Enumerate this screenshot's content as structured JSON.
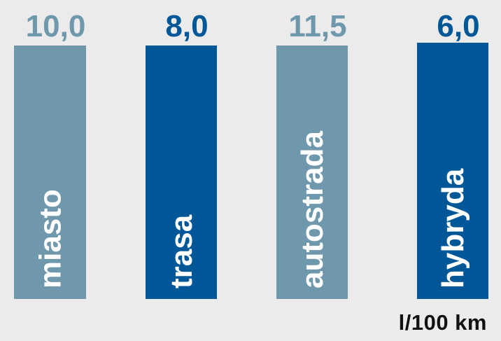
{
  "chart_data": {
    "type": "bar",
    "categories": [
      "miasto",
      "trasa",
      "autostrada",
      "hybryda"
    ],
    "value_labels": [
      "10,0",
      "8,0",
      "11,5",
      "6,0"
    ],
    "values": [
      10.0,
      8.0,
      11.5,
      6.0
    ],
    "unit": "l/100 km",
    "colors": {
      "light_bar": "#6f98ad",
      "dark_bar": "#005797",
      "light_text": "#6f98ad",
      "dark_text": "#005797"
    },
    "bar_colors": [
      "light",
      "dark",
      "light",
      "dark"
    ]
  }
}
